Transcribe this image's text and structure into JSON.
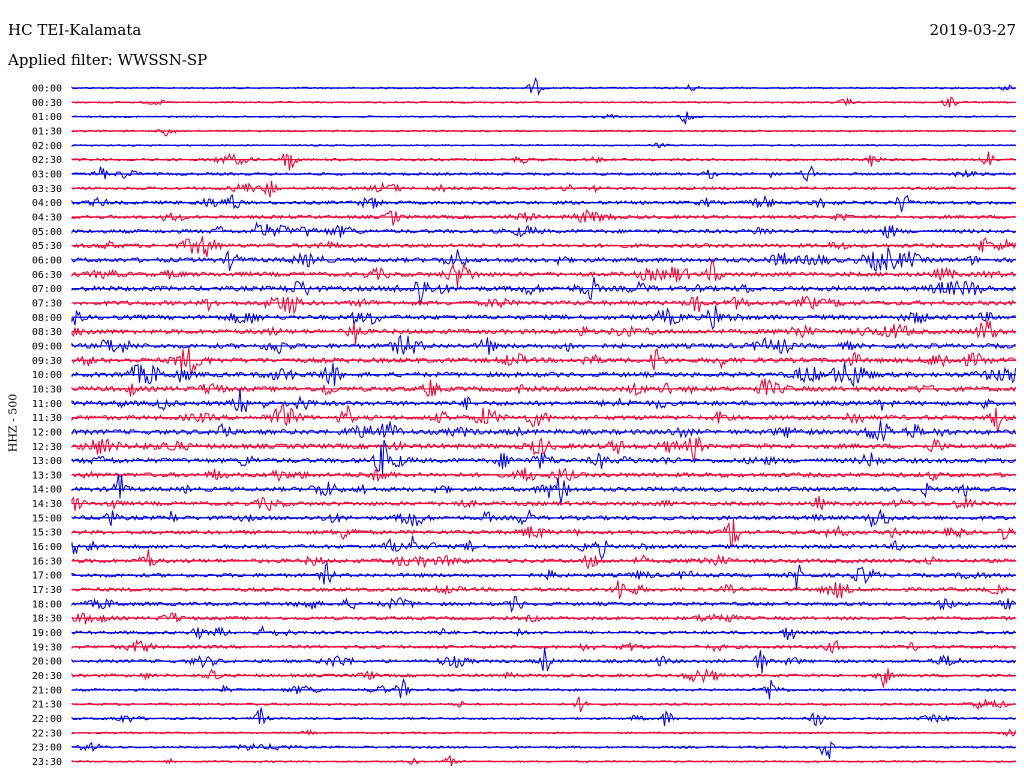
{
  "header": {
    "station": "HC TEI-Kalamata",
    "date": "2019-03-27",
    "filter": "Applied filter: WWSSN-SP"
  },
  "channel_label": "HHZ - 500",
  "colors": {
    "even_rows": "#0000dd",
    "odd_rows": "#ee0033",
    "text": "#000000"
  },
  "chart_data": {
    "type": "line",
    "title": "",
    "xlabel": "",
    "ylabel": "HHZ - 500",
    "row_labels": [
      "00:00",
      "00:30",
      "01:00",
      "01:30",
      "02:00",
      "02:30",
      "03:00",
      "03:30",
      "04:00",
      "04:30",
      "05:00",
      "05:30",
      "06:00",
      "06:30",
      "07:00",
      "07:30",
      "08:00",
      "08:30",
      "09:00",
      "09:30",
      "10:00",
      "10:30",
      "11:00",
      "11:30",
      "12:00",
      "12:30",
      "13:00",
      "13:30",
      "14:00",
      "14:30",
      "15:00",
      "15:30",
      "16:00",
      "16:30",
      "17:00",
      "17:30",
      "18:00",
      "18:30",
      "19:00",
      "19:30",
      "20:00",
      "20:30",
      "21:00",
      "21:30",
      "22:00",
      "22:30",
      "23:00",
      "23:30"
    ],
    "row_activity": [
      0.15,
      0.12,
      0.12,
      0.12,
      0.1,
      0.35,
      0.4,
      0.45,
      0.6,
      0.6,
      0.7,
      0.75,
      0.9,
      0.9,
      1.0,
      0.9,
      0.95,
      0.95,
      0.95,
      1.0,
      1.0,
      1.0,
      0.95,
      0.95,
      1.0,
      1.0,
      0.95,
      0.9,
      0.85,
      0.8,
      0.8,
      0.75,
      0.75,
      0.75,
      0.7,
      0.7,
      0.65,
      0.6,
      0.55,
      0.55,
      0.55,
      0.5,
      0.35,
      0.3,
      0.25,
      0.15,
      0.3,
      0.15
    ],
    "events": [
      {
        "row": 0,
        "x": 0.49,
        "amp": 9
      },
      {
        "row": 1,
        "x": 0.93,
        "amp": 7
      },
      {
        "row": 1,
        "x": 0.82,
        "amp": 4
      },
      {
        "row": 2,
        "x": 0.65,
        "amp": 8
      },
      {
        "row": 3,
        "x": 0.1,
        "amp": 5
      },
      {
        "row": 5,
        "x": 0.23,
        "amp": 14
      },
      {
        "row": 5,
        "x": 0.85,
        "amp": 8
      },
      {
        "row": 5,
        "x": 0.97,
        "amp": 9
      },
      {
        "row": 6,
        "x": 0.03,
        "amp": 8
      },
      {
        "row": 6,
        "x": 0.78,
        "amp": 9
      },
      {
        "row": 7,
        "x": 0.21,
        "amp": 9
      },
      {
        "row": 8,
        "x": 0.17,
        "amp": 10
      },
      {
        "row": 8,
        "x": 0.88,
        "amp": 11
      },
      {
        "row": 9,
        "x": 0.34,
        "amp": 8
      },
      {
        "row": 10,
        "x": 0.2,
        "amp": 12
      },
      {
        "row": 11,
        "x": 0.14,
        "amp": 11
      },
      {
        "row": 12,
        "x": 0.17,
        "amp": 12
      },
      {
        "row": 12,
        "x": 0.41,
        "amp": 11
      },
      {
        "row": 13,
        "x": 0.68,
        "amp": 14
      },
      {
        "row": 14,
        "x": 0.37,
        "amp": 18
      },
      {
        "row": 14,
        "x": 0.55,
        "amp": 12
      },
      {
        "row": 15,
        "x": 0.66,
        "amp": 12
      },
      {
        "row": 16,
        "x": 0.68,
        "amp": 14
      },
      {
        "row": 17,
        "x": 0.3,
        "amp": 12
      },
      {
        "row": 18,
        "x": 0.44,
        "amp": 11
      },
      {
        "row": 19,
        "x": 0.62,
        "amp": 14
      },
      {
        "row": 20,
        "x": 0.27,
        "amp": 10
      },
      {
        "row": 21,
        "x": 0.38,
        "amp": 11
      },
      {
        "row": 22,
        "x": 0.18,
        "amp": 12
      },
      {
        "row": 23,
        "x": 0.29,
        "amp": 12
      },
      {
        "row": 23,
        "x": 0.98,
        "amp": 14
      },
      {
        "row": 24,
        "x": 0.16,
        "amp": 12
      },
      {
        "row": 24,
        "x": 0.86,
        "amp": 12
      },
      {
        "row": 25,
        "x": 0.66,
        "amp": 12
      },
      {
        "row": 26,
        "x": 0.33,
        "amp": 12
      },
      {
        "row": 28,
        "x": 0.05,
        "amp": 16
      },
      {
        "row": 30,
        "x": 0.04,
        "amp": 9
      },
      {
        "row": 30,
        "x": 0.48,
        "amp": 10
      },
      {
        "row": 30,
        "x": 0.85,
        "amp": 11
      },
      {
        "row": 31,
        "x": 0.7,
        "amp": 10
      },
      {
        "row": 32,
        "x": 0.36,
        "amp": 10
      },
      {
        "row": 32,
        "x": 0.56,
        "amp": 10
      },
      {
        "row": 33,
        "x": 0.08,
        "amp": 12
      },
      {
        "row": 33,
        "x": 0.55,
        "amp": 11
      },
      {
        "row": 34,
        "x": 0.27,
        "amp": 10
      },
      {
        "row": 34,
        "x": 0.77,
        "amp": 12
      },
      {
        "row": 35,
        "x": 0.58,
        "amp": 10
      },
      {
        "row": 36,
        "x": 0.47,
        "amp": 10
      },
      {
        "row": 38,
        "x": 0.76,
        "amp": 9
      },
      {
        "row": 40,
        "x": 0.5,
        "amp": 13
      },
      {
        "row": 40,
        "x": 0.73,
        "amp": 12
      },
      {
        "row": 41,
        "x": 0.86,
        "amp": 11
      },
      {
        "row": 41,
        "x": 0.15,
        "amp": 8
      },
      {
        "row": 42,
        "x": 0.35,
        "amp": 10
      },
      {
        "row": 42,
        "x": 0.74,
        "amp": 8
      },
      {
        "row": 43,
        "x": 0.54,
        "amp": 8
      },
      {
        "row": 44,
        "x": 0.2,
        "amp": 10
      },
      {
        "row": 44,
        "x": 0.63,
        "amp": 8
      },
      {
        "row": 44,
        "x": 0.79,
        "amp": 9
      },
      {
        "row": 46,
        "x": 0.8,
        "amp": 16
      },
      {
        "row": 47,
        "x": 0.4,
        "amp": 5
      }
    ]
  }
}
